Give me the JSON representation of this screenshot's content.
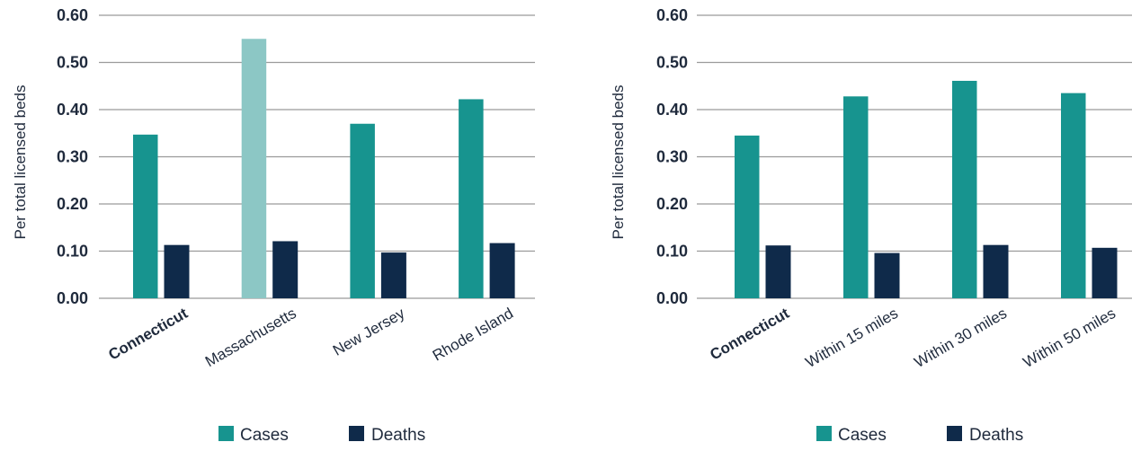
{
  "colors": {
    "cases": "#17948f",
    "cases_highlight": "#8cc7c5",
    "deaths": "#0f2a4a",
    "grid": "#9b9b9b",
    "text": "#1f2a3c"
  },
  "chart_data": [
    {
      "type": "bar",
      "ylabel": "Per total licensed beds",
      "ylim": [
        0,
        0.6
      ],
      "yticks": [
        "0.00",
        "0.10",
        "0.20",
        "0.30",
        "0.40",
        "0.50",
        "0.60"
      ],
      "grid": true,
      "legend_position": "bottom",
      "categories": [
        "Connecticut",
        "Massachusetts",
        "New Jersey",
        "Rhode Island"
      ],
      "bold_categories": [
        "Connecticut"
      ],
      "series": [
        {
          "name": "Cases",
          "values": [
            0.347,
            0.55,
            0.37,
            0.422
          ]
        },
        {
          "name": "Deaths",
          "values": [
            0.113,
            0.121,
            0.097,
            0.117
          ]
        }
      ],
      "highlighted_bars": [
        {
          "series": "Cases",
          "category": "Massachusetts"
        }
      ],
      "legend": [
        "Cases",
        "Deaths"
      ]
    },
    {
      "type": "bar",
      "ylabel": "Per total licensed beds",
      "ylim": [
        0,
        0.6
      ],
      "yticks": [
        "0.00",
        "0.10",
        "0.20",
        "0.30",
        "0.40",
        "0.50",
        "0.60"
      ],
      "grid": true,
      "legend_position": "bottom",
      "categories": [
        "Connecticut",
        "Within 15 miles",
        "Within 30 miles",
        "Within 50 miles"
      ],
      "bold_categories": [
        "Connecticut"
      ],
      "series": [
        {
          "name": "Cases",
          "values": [
            0.345,
            0.428,
            0.461,
            0.435
          ]
        },
        {
          "name": "Deaths",
          "values": [
            0.112,
            0.096,
            0.113,
            0.107
          ]
        }
      ],
      "highlighted_bars": [],
      "legend": [
        "Cases",
        "Deaths"
      ]
    }
  ]
}
